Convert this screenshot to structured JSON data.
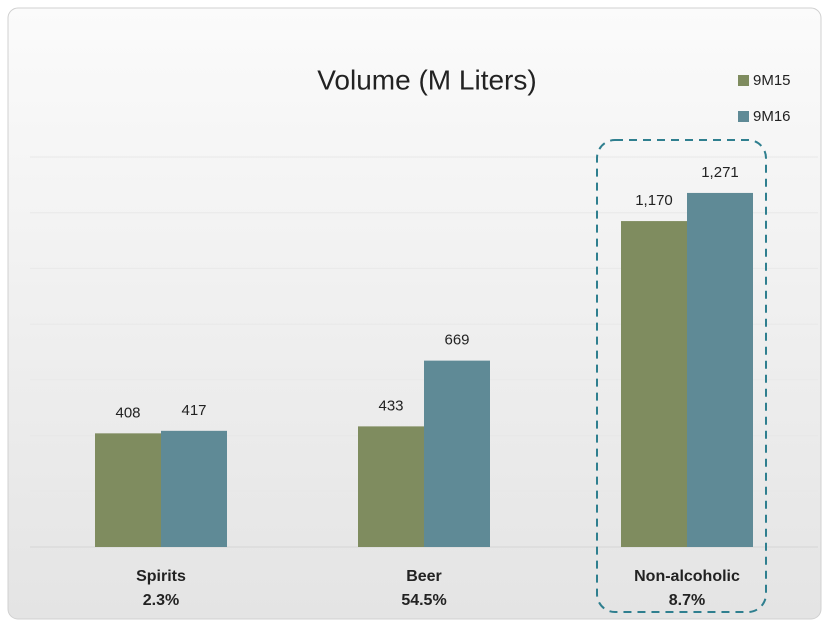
{
  "chart_data": {
    "type": "bar",
    "title": "Volume (M Liters)",
    "categories": [
      "Spirits",
      "Beer",
      "Non-alcoholic"
    ],
    "category_notes": [
      "2.3%",
      "54.5%",
      "8.7%"
    ],
    "series": [
      {
        "name": "9M15",
        "color": "#7f8c5f",
        "values": [
          408,
          433,
          1170
        ],
        "value_labels": [
          "408",
          "433",
          "1,170"
        ]
      },
      {
        "name": "9M16",
        "color": "#5f8a96",
        "values": [
          417,
          669,
          1271
        ],
        "value_labels": [
          "417",
          "669",
          "1,271"
        ]
      }
    ],
    "ylim": [
      0,
      1400
    ],
    "yticks": [
      0,
      200,
      400,
      600,
      800,
      1000,
      1200,
      1400
    ],
    "grid": true,
    "legend": "top-right"
  }
}
